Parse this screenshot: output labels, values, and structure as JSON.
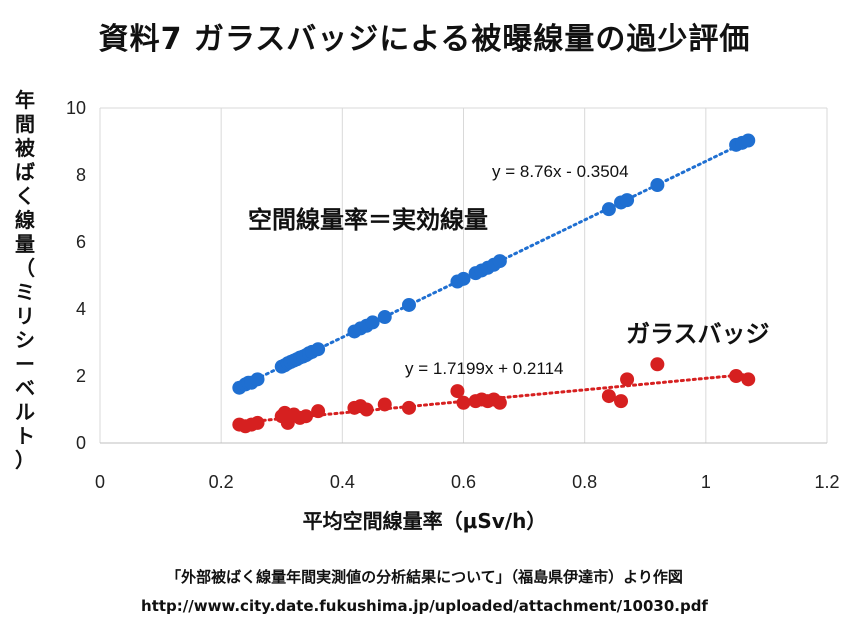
{
  "header": {
    "title": "資料7 ガラスバッジによる被曝線量の過少評価"
  },
  "footer": {
    "source": "「外部被ばく線量年間実測値の分析結果について」（福島県伊達市）より作図",
    "url": "http://www.city.date.fukushima.jp/uploaded/attachment/10030.pdf"
  },
  "chart_data": {
    "type": "scatter",
    "xlabel": "平均空間線量率（μSv/h）",
    "ylabel": "年間被ばく線量（ミリシーベルト）",
    "xlim": [
      0,
      1.2
    ],
    "ylim": [
      0,
      10
    ],
    "x_ticks": [
      "0",
      "0.2",
      "0.4",
      "0.6",
      "0.8",
      "1",
      "1.2"
    ],
    "y_ticks": [
      "0",
      "2",
      "4",
      "6",
      "8",
      "10"
    ],
    "grid": "vertical",
    "annotations": {
      "blue_label": "空間線量率＝実効線量",
      "red_label": "ガラスバッジ",
      "blue_equation": "y = 8.76x - 0.3504",
      "red_equation": "y = 1.7199x + 0.2114"
    },
    "series": [
      {
        "color": "#1f6fd1",
        "trendline": {
          "slope": 8.76,
          "intercept": -0.3504,
          "x_range": [
            0.23,
            1.07
          ]
        },
        "x": [
          0.23,
          0.24,
          0.245,
          0.25,
          0.26,
          0.3,
          0.305,
          0.31,
          0.315,
          0.32,
          0.325,
          0.33,
          0.335,
          0.34,
          0.345,
          0.35,
          0.36,
          0.42,
          0.43,
          0.44,
          0.45,
          0.47,
          0.51,
          0.59,
          0.6,
          0.62,
          0.63,
          0.64,
          0.65,
          0.66,
          0.84,
          0.86,
          0.87,
          0.92,
          1.05,
          1.06,
          1.07
        ],
        "y": [
          1.65,
          1.75,
          1.8,
          1.8,
          1.9,
          2.28,
          2.32,
          2.38,
          2.42,
          2.46,
          2.5,
          2.55,
          2.58,
          2.62,
          2.68,
          2.72,
          2.8,
          3.33,
          3.42,
          3.5,
          3.6,
          3.76,
          4.12,
          4.82,
          4.9,
          5.07,
          5.15,
          5.23,
          5.32,
          5.43,
          6.98,
          7.18,
          7.25,
          7.7,
          8.9,
          8.96,
          9.03
        ]
      },
      {
        "color": "#d62020",
        "trendline": {
          "slope": 1.7199,
          "intercept": 0.2114,
          "x_range": [
            0.23,
            1.07
          ]
        },
        "x": [
          0.23,
          0.24,
          0.25,
          0.26,
          0.3,
          0.305,
          0.31,
          0.32,
          0.33,
          0.34,
          0.36,
          0.42,
          0.43,
          0.44,
          0.47,
          0.51,
          0.59,
          0.6,
          0.62,
          0.63,
          0.64,
          0.65,
          0.66,
          0.84,
          0.86,
          0.87,
          0.92,
          1.05,
          1.07
        ],
        "y": [
          0.55,
          0.5,
          0.55,
          0.6,
          0.8,
          0.9,
          0.6,
          0.85,
          0.75,
          0.8,
          0.95,
          1.05,
          1.1,
          1.0,
          1.15,
          1.05,
          1.55,
          1.2,
          1.25,
          1.3,
          1.25,
          1.3,
          1.2,
          1.4,
          1.25,
          1.9,
          2.35,
          2.0,
          1.9
        ]
      }
    ]
  }
}
